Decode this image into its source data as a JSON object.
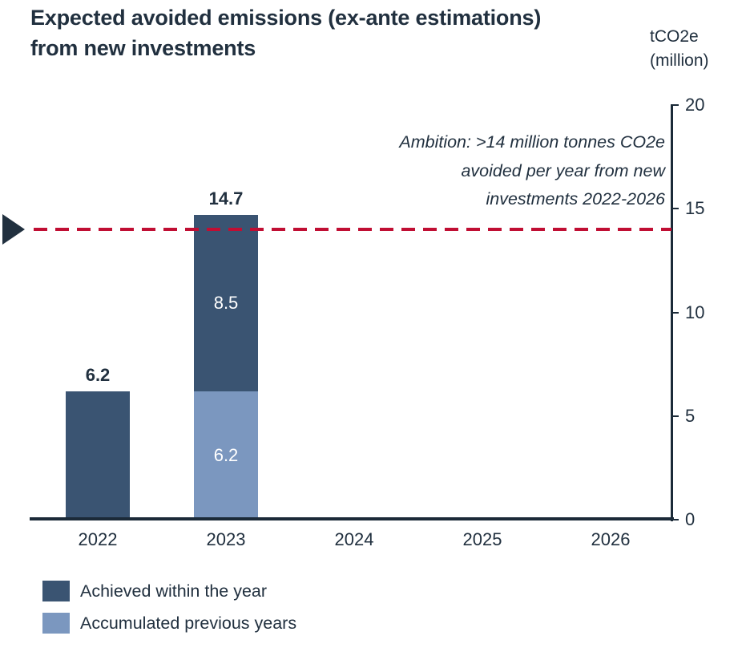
{
  "page": {
    "title": "Expected avoided emissions (ex-ante estimations)\nfrom new investments",
    "y_axis_title": "tCO2e\n(million)",
    "annotation": "Ambition: >14 million tonnes CO2e\navoided per year from new\ninvestments 2022-2026"
  },
  "colors": {
    "text_dark": "#21303F",
    "axis_line": "#1B2A38",
    "achieved_dark_blue": "#3A5472",
    "accumulated_light_blue": "#7B97BF",
    "target_red": "#C00E33",
    "bar_label_white": "#FFFFFF"
  },
  "chart_data": {
    "type": "bar",
    "subtype": "stacked",
    "title": "Expected avoided emissions (ex-ante estimations) from new investments",
    "ylabel": "tCO2e (million)",
    "xlabel": "",
    "ylim": [
      0,
      20
    ],
    "yticks": [
      0,
      5,
      10,
      15,
      20
    ],
    "grid": false,
    "y_axis_position": "right",
    "categories": [
      "2022",
      "2023",
      "2024",
      "2025",
      "2026"
    ],
    "series": [
      {
        "name": "Accumulated previous years",
        "color": "#7B97BF",
        "values": [
          0,
          6.2,
          0,
          0,
          0
        ],
        "segment_labels": [
          "",
          "6.2",
          "",
          "",
          ""
        ]
      },
      {
        "name": "Achieved within the year",
        "color": "#3A5472",
        "values": [
          6.2,
          8.5,
          0,
          0,
          0
        ],
        "segment_labels": [
          "",
          "8.5",
          "",
          "",
          ""
        ]
      }
    ],
    "total_labels": [
      "6.2",
      "14.7",
      "",
      "",
      ""
    ],
    "target_line": {
      "value": 14,
      "style": "dashed",
      "color": "#C00E33",
      "annotation": "Ambition: >14 million tonnes CO2e avoided per year from new investments 2022-2026"
    },
    "legend_position": "bottom-left",
    "legend": [
      {
        "label": "Achieved within the year",
        "color": "#3A5472"
      },
      {
        "label": "Accumulated previous years",
        "color": "#7B97BF"
      }
    ]
  }
}
